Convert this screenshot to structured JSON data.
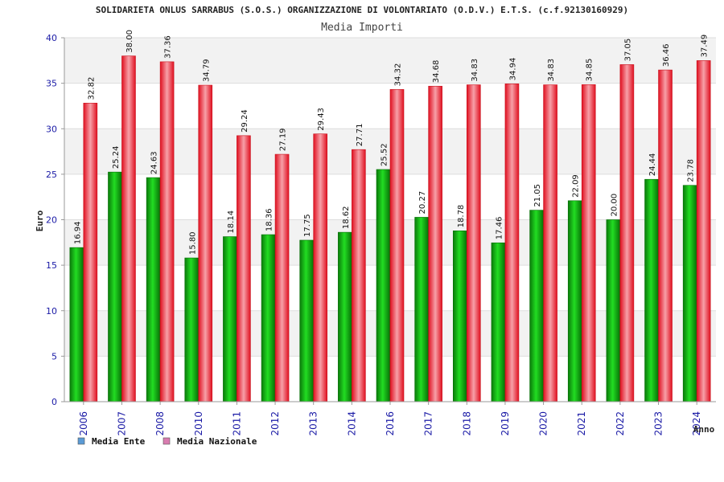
{
  "chart_data": {
    "type": "bar",
    "title": "SOLIDARIETA ONLUS SARRABUS (S.O.S.) ORGANIZZAZIONE DI VOLONTARIATO (O.D.V.) E.T.S. (c.f.92130160929)",
    "subtitle": "Media Importi",
    "xlabel": "Anno",
    "ylabel": "Euro",
    "ylim": [
      0,
      40
    ],
    "yticks": [
      "0",
      "5",
      "10",
      "15",
      "20",
      "25",
      "30",
      "35",
      "40"
    ],
    "categories": [
      "2006",
      "2007",
      "2008",
      "2010",
      "2011",
      "2012",
      "2013",
      "2014",
      "2016",
      "2017",
      "2018",
      "2019",
      "2020",
      "2021",
      "2022",
      "2023",
      "2024"
    ],
    "series": [
      {
        "name": "Media Ente",
        "color": "#0a9e0a",
        "values": [
          16.94,
          25.24,
          24.63,
          15.8,
          18.14,
          18.36,
          17.75,
          18.62,
          25.52,
          20.27,
          18.78,
          17.46,
          21.05,
          22.09,
          20.0,
          24.44,
          23.78
        ],
        "labels": [
          "16.94",
          "25.24",
          "24.63",
          "15.80",
          "18.14",
          "18.36",
          "17.75",
          "18.62",
          "25.52",
          "20.27",
          "18.78",
          "17.46",
          "21.05",
          "22.09",
          "20.00",
          "24.44",
          "23.78"
        ]
      },
      {
        "name": "Media Nazionale",
        "color": "#e8202a",
        "values": [
          32.82,
          38.0,
          37.36,
          34.79,
          29.24,
          27.19,
          29.43,
          27.71,
          34.32,
          34.68,
          34.83,
          34.94,
          34.83,
          34.85,
          37.05,
          36.46,
          37.49
        ],
        "labels": [
          "32.82",
          "38.00",
          "37.36",
          "34.79",
          "29.24",
          "27.19",
          "29.43",
          "27.71",
          "34.32",
          "34.68",
          "34.83",
          "34.94",
          "34.83",
          "34.85",
          "37.05",
          "36.46",
          "37.49"
        ]
      }
    ],
    "legend": [
      {
        "label": "Media Ente",
        "swatch_color": "#5b9bd5"
      },
      {
        "label": "Media Nazionale",
        "swatch_color": "#d97cb0"
      }
    ],
    "legend_position": "bottom-left",
    "grid": "horizontal",
    "plot_background": "alternating bands"
  }
}
